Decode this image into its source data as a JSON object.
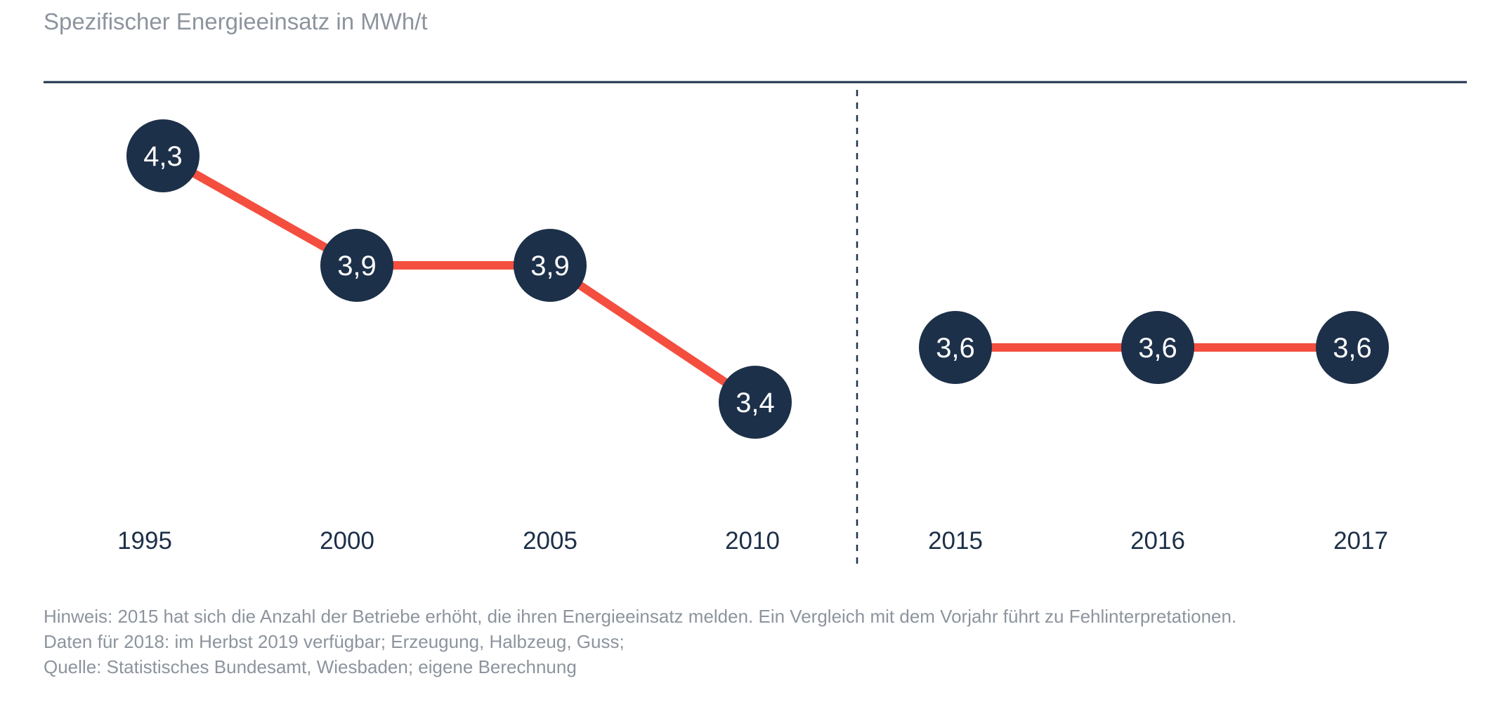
{
  "chart_data": {
    "type": "line",
    "title": "Spezifischer Energieeinsatz in MWh/t",
    "xlabel": "",
    "ylabel": "",
    "ylim": [
      3.0,
      4.5
    ],
    "grid": false,
    "legend": "none",
    "segments": [
      {
        "categories": [
          "1995",
          "2000",
          "2005",
          "2010"
        ],
        "values": [
          4.3,
          3.9,
          3.9,
          3.4
        ],
        "labels": [
          "4,3",
          "3,9",
          "3,9",
          "3,4"
        ]
      },
      {
        "categories": [
          "2015",
          "2016",
          "2017"
        ],
        "values": [
          3.6,
          3.6,
          3.6
        ],
        "labels": [
          "3,6",
          "3,6",
          "3,6"
        ]
      }
    ]
  },
  "notes": [
    "Hinweis: 2015 hat sich die Anzahl der Betriebe erhöht, die ihren Energieeinsatz melden. Ein Vergleich mit dem Vorjahr führt zu Fehlinterpretationen.",
    "Daten für 2018: im Herbst 2019 verfügbar; Erzeugung, Halbzeug, Guss;",
    "Quelle: Statistisches Bundesamt, Wiesbaden; eigene Berechnung"
  ],
  "colors": {
    "line": "#f44e3f",
    "marker": "#1d3049",
    "marker_text": "#ffffff",
    "axis": "#1d3049",
    "muted_text": "#8d949d"
  }
}
